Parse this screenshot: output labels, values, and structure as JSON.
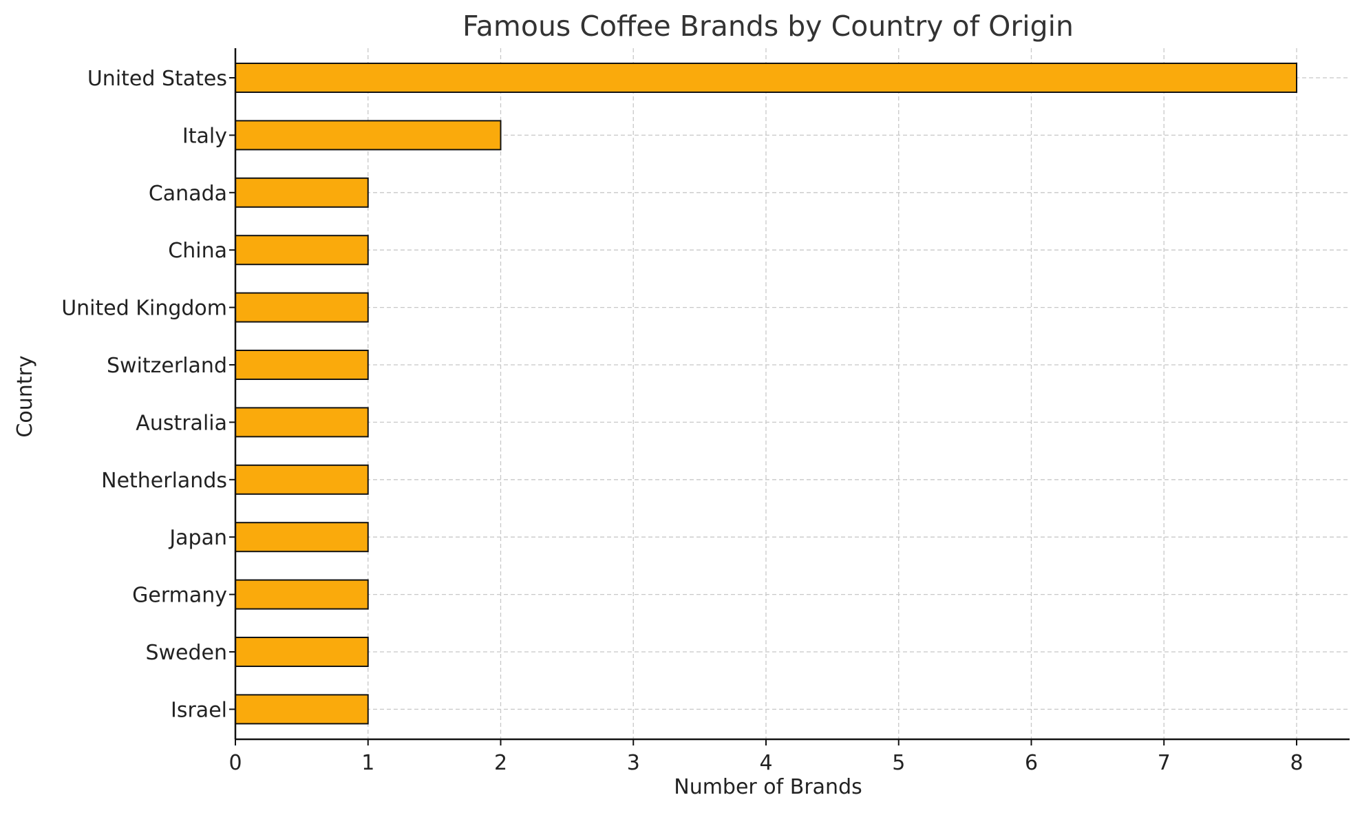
{
  "chart_data": {
    "type": "bar",
    "orientation": "horizontal",
    "title": "Famous Coffee Brands by Country of Origin",
    "xlabel": "Number of Brands",
    "ylabel": "Country",
    "categories": [
      "United States",
      "Italy",
      "Canada",
      "China",
      "United Kingdom",
      "Switzerland",
      "Australia",
      "Netherlands",
      "Japan",
      "Germany",
      "Sweden",
      "Israel"
    ],
    "values": [
      8,
      2,
      1,
      1,
      1,
      1,
      1,
      1,
      1,
      1,
      1,
      1
    ],
    "xlim": [
      0,
      8.4
    ],
    "xticks": [
      0,
      1,
      2,
      3,
      4,
      5,
      6,
      7,
      8
    ],
    "grid": true,
    "grid_style": "dashed",
    "bar_color": "#FAAA0C",
    "bar_edge_color": "#111111"
  }
}
